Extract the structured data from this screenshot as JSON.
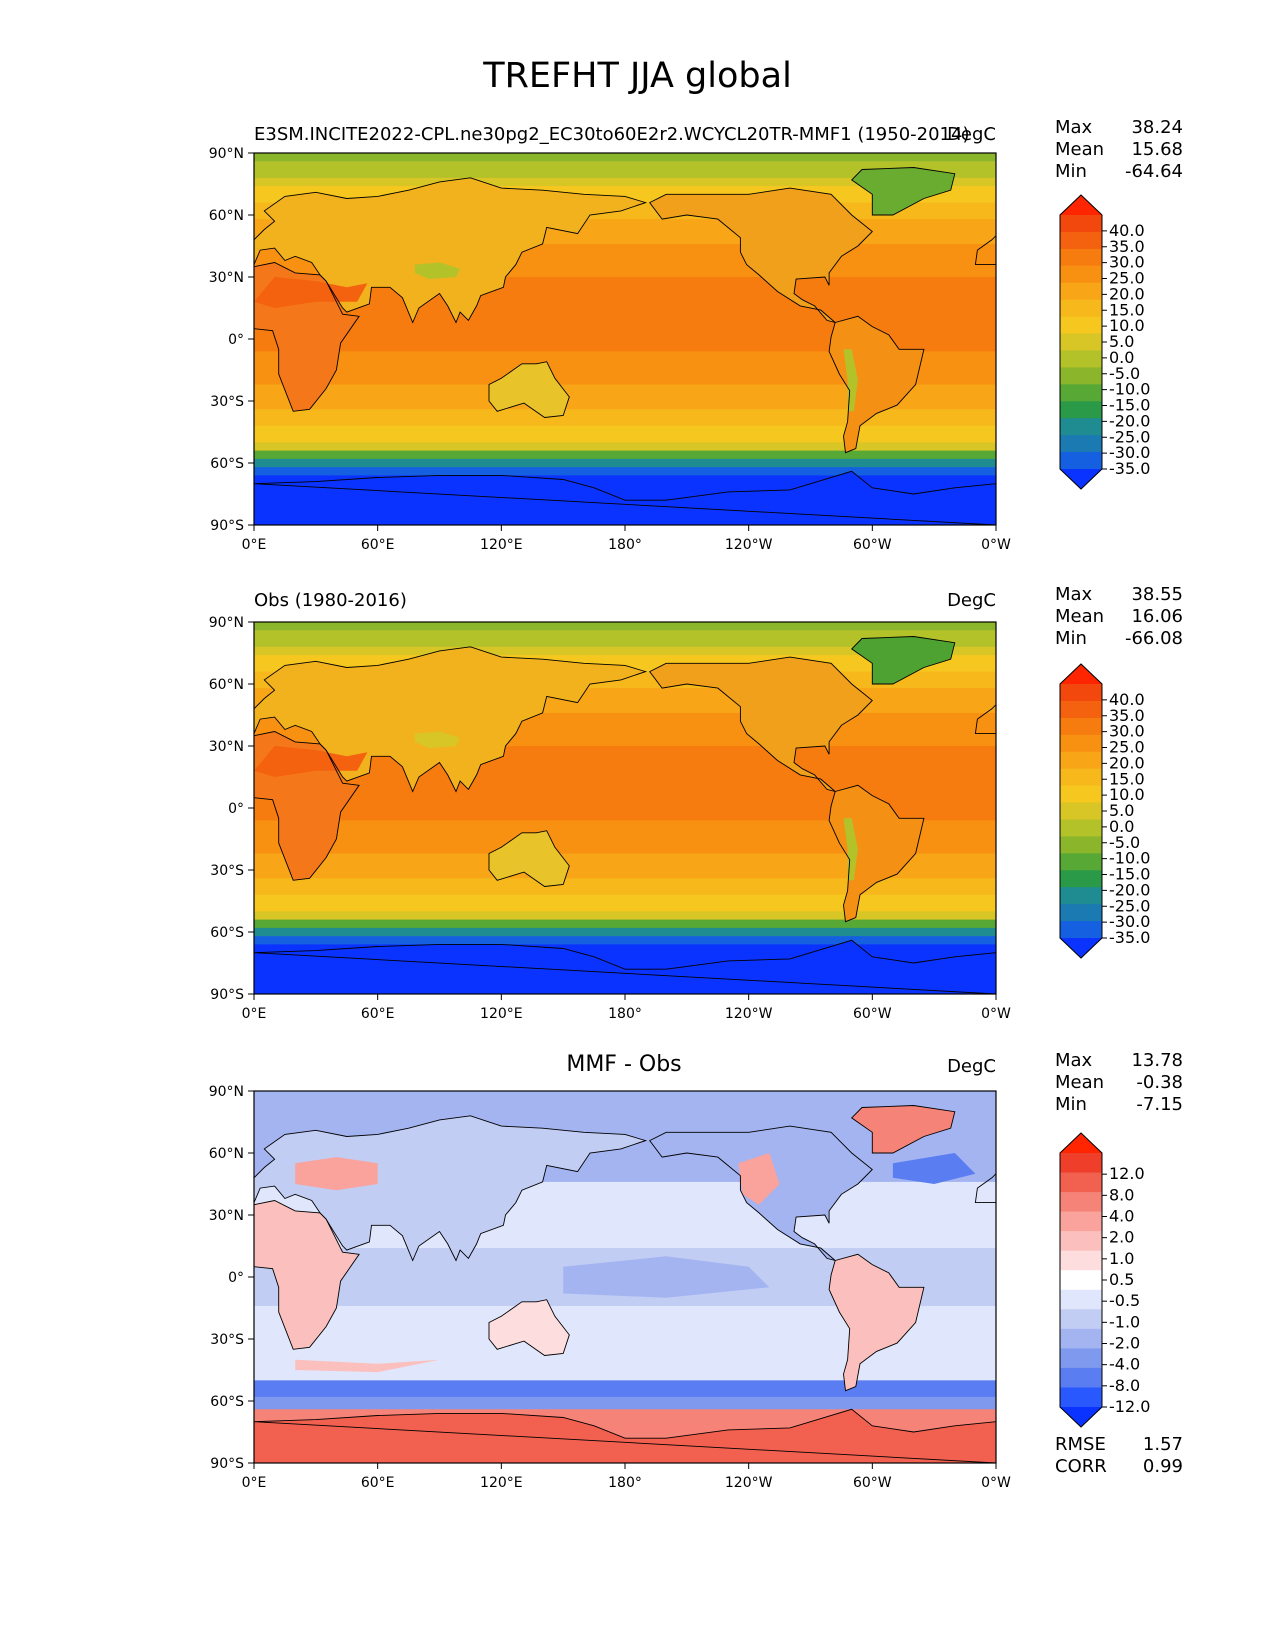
{
  "title": "TREFHT JJA global",
  "colors": {
    "model_obs_levels": [
      "#0a33ff",
      "#1560e0",
      "#1c7ab2",
      "#1f8c92",
      "#2a9a48",
      "#58a835",
      "#8bb52a",
      "#b4c22a",
      "#d8c526",
      "#f5c71f",
      "#f7b81c",
      "#f8a517",
      "#f89012",
      "#f67c10",
      "#f4610f",
      "#f2480e",
      "#ff2500"
    ],
    "diff_levels": [
      "#0a33ff",
      "#2958ff",
      "#5a7df2",
      "#7f99ee",
      "#a3b4f1",
      "#c2cdf4",
      "#e0e6fb",
      "#ffffff",
      "#fddddd",
      "#fbc0bd",
      "#f9a39c",
      "#f68378",
      "#f26150",
      "#ef3f2a",
      "#ff2500"
    ],
    "land_outline": "#000000"
  },
  "panels": [
    {
      "title_left": "E3SM.INCITE2022-CPL.ne30pg2_EC30to60E2r2.WCYCL20TR-MMF1 (1950-2014)",
      "title_right": "DegC",
      "title_center": "",
      "stats": [
        {
          "label": "Max",
          "value": "38.24"
        },
        {
          "label": "Mean",
          "value": "15.68"
        },
        {
          "label": "Min",
          "value": "-64.64"
        }
      ],
      "colorbar_labels": [
        "40.0",
        "35.0",
        "30.0",
        "25.0",
        "20.0",
        "15.0",
        "10.0",
        "5.0",
        "0.0",
        "-5.0",
        "-10.0",
        "-15.0",
        "-20.0",
        "-25.0",
        "-30.0",
        "-35.0"
      ]
    },
    {
      "title_left": "Obs (1980-2016)",
      "title_right": "DegC",
      "title_center": "",
      "stats": [
        {
          "label": "Max",
          "value": "38.55"
        },
        {
          "label": "Mean",
          "value": "16.06"
        },
        {
          "label": "Min",
          "value": "-66.08"
        }
      ],
      "colorbar_labels": [
        "40.0",
        "35.0",
        "30.0",
        "25.0",
        "20.0",
        "15.0",
        "10.0",
        "5.0",
        "0.0",
        "-5.0",
        "-10.0",
        "-15.0",
        "-20.0",
        "-25.0",
        "-30.0",
        "-35.0"
      ]
    },
    {
      "title_left": "",
      "title_right": "DegC",
      "title_center": "MMF - Obs",
      "stats": [
        {
          "label": "Max",
          "value": "13.78"
        },
        {
          "label": "Mean",
          "value": "-0.38"
        },
        {
          "label": "Min",
          "value": "-7.15"
        }
      ],
      "colorbar_labels": [
        "12.0",
        "8.0",
        "4.0",
        "2.0",
        "1.0",
        "0.5",
        "-0.5",
        "-1.0",
        "-2.0",
        "-4.0",
        "-8.0",
        "-12.0"
      ],
      "metrics": [
        {
          "label": "RMSE",
          "value": "1.57"
        },
        {
          "label": "CORR",
          "value": "0.99"
        }
      ]
    }
  ],
  "axes": {
    "lat_ticks": [
      "90°N",
      "60°N",
      "30°N",
      "0°",
      "30°S",
      "60°S",
      "90°S"
    ],
    "lon_ticks": [
      "0°E",
      "60°E",
      "120°E",
      "180°",
      "120°W",
      "60°W",
      "0°W"
    ]
  }
}
